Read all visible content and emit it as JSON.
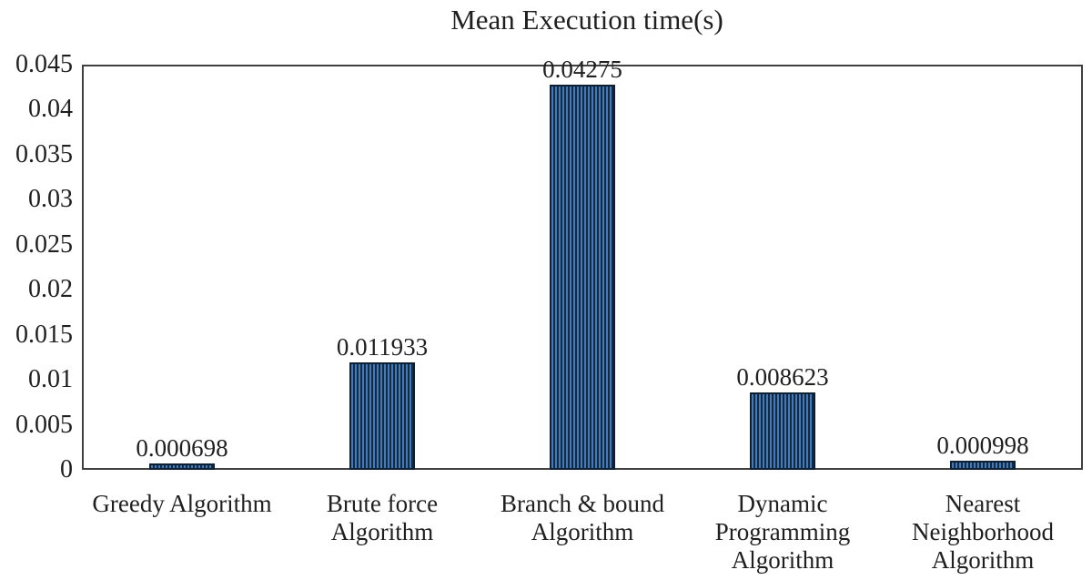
{
  "title": "Mean Execution time(s)",
  "chart_data": {
    "type": "bar",
    "title": "Mean Execution time(s)",
    "categories": [
      "Greedy Algorithm",
      "Brute force\nAlgorithm",
      "Branch & bound\nAlgorithm",
      "Dynamic\nProgramming\nAlgorithm",
      "Nearest\nNeighborhood\nAlgorithm"
    ],
    "values": [
      0.000698,
      0.011933,
      0.04275,
      0.008623,
      0.000998
    ],
    "value_labels": [
      "0.000698",
      "0.011933",
      "0.04275",
      "0.008623",
      "0.000998"
    ],
    "xlabel": "",
    "ylabel": "",
    "ylim": [
      0,
      0.045
    ],
    "ytick_step": 0.005,
    "yticks": [
      "0",
      "0.005",
      "0.01",
      "0.015",
      "0.02",
      "0.025",
      "0.03",
      "0.035",
      "0.04",
      "0.045"
    ],
    "grid": false,
    "legend": false,
    "colors": {
      "bar_stripe_light": "#4679b8",
      "bar_stripe_dark": "#122a42",
      "bar_border": "#0d1f33",
      "plot_border": "#404040",
      "text": "#1f1f1f"
    }
  }
}
